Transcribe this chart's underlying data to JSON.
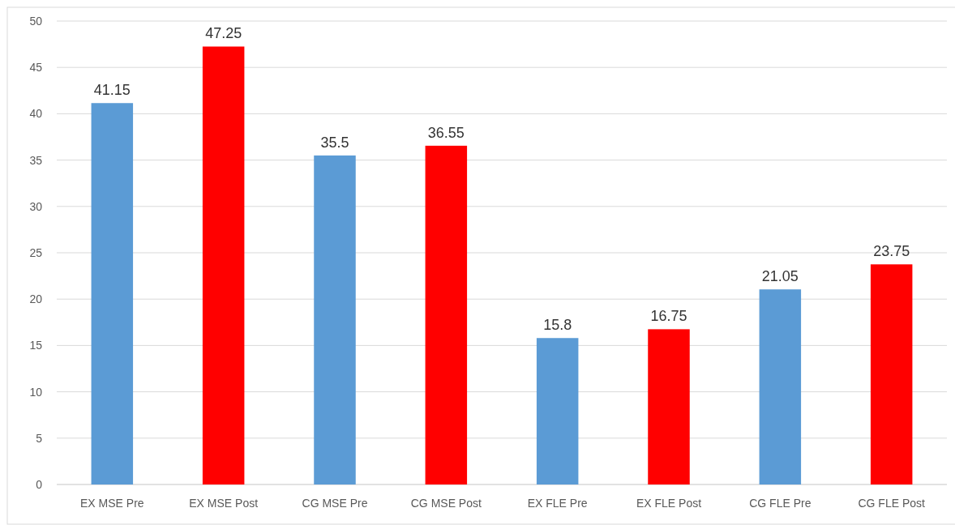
{
  "chart_data": {
    "type": "bar",
    "categories": [
      "EX MSE Pre",
      "EX MSE Post",
      "CG MSE Pre",
      "CG MSE Post",
      "EX FLE Pre",
      "EX FLE Post",
      "CG FLE Pre",
      "CG FLE Post"
    ],
    "values": [
      41.15,
      47.25,
      35.5,
      36.55,
      15.8,
      16.75,
      21.05,
      23.75
    ],
    "colors": [
      "#5b9bd5",
      "#ff0000",
      "#5b9bd5",
      "#ff0000",
      "#5b9bd5",
      "#ff0000",
      "#5b9bd5",
      "#ff0000"
    ],
    "ylim": [
      0,
      50
    ],
    "yticks": [
      0,
      5,
      10,
      15,
      20,
      25,
      30,
      35,
      40,
      45,
      50
    ],
    "grid": "y",
    "data_labels": true
  }
}
